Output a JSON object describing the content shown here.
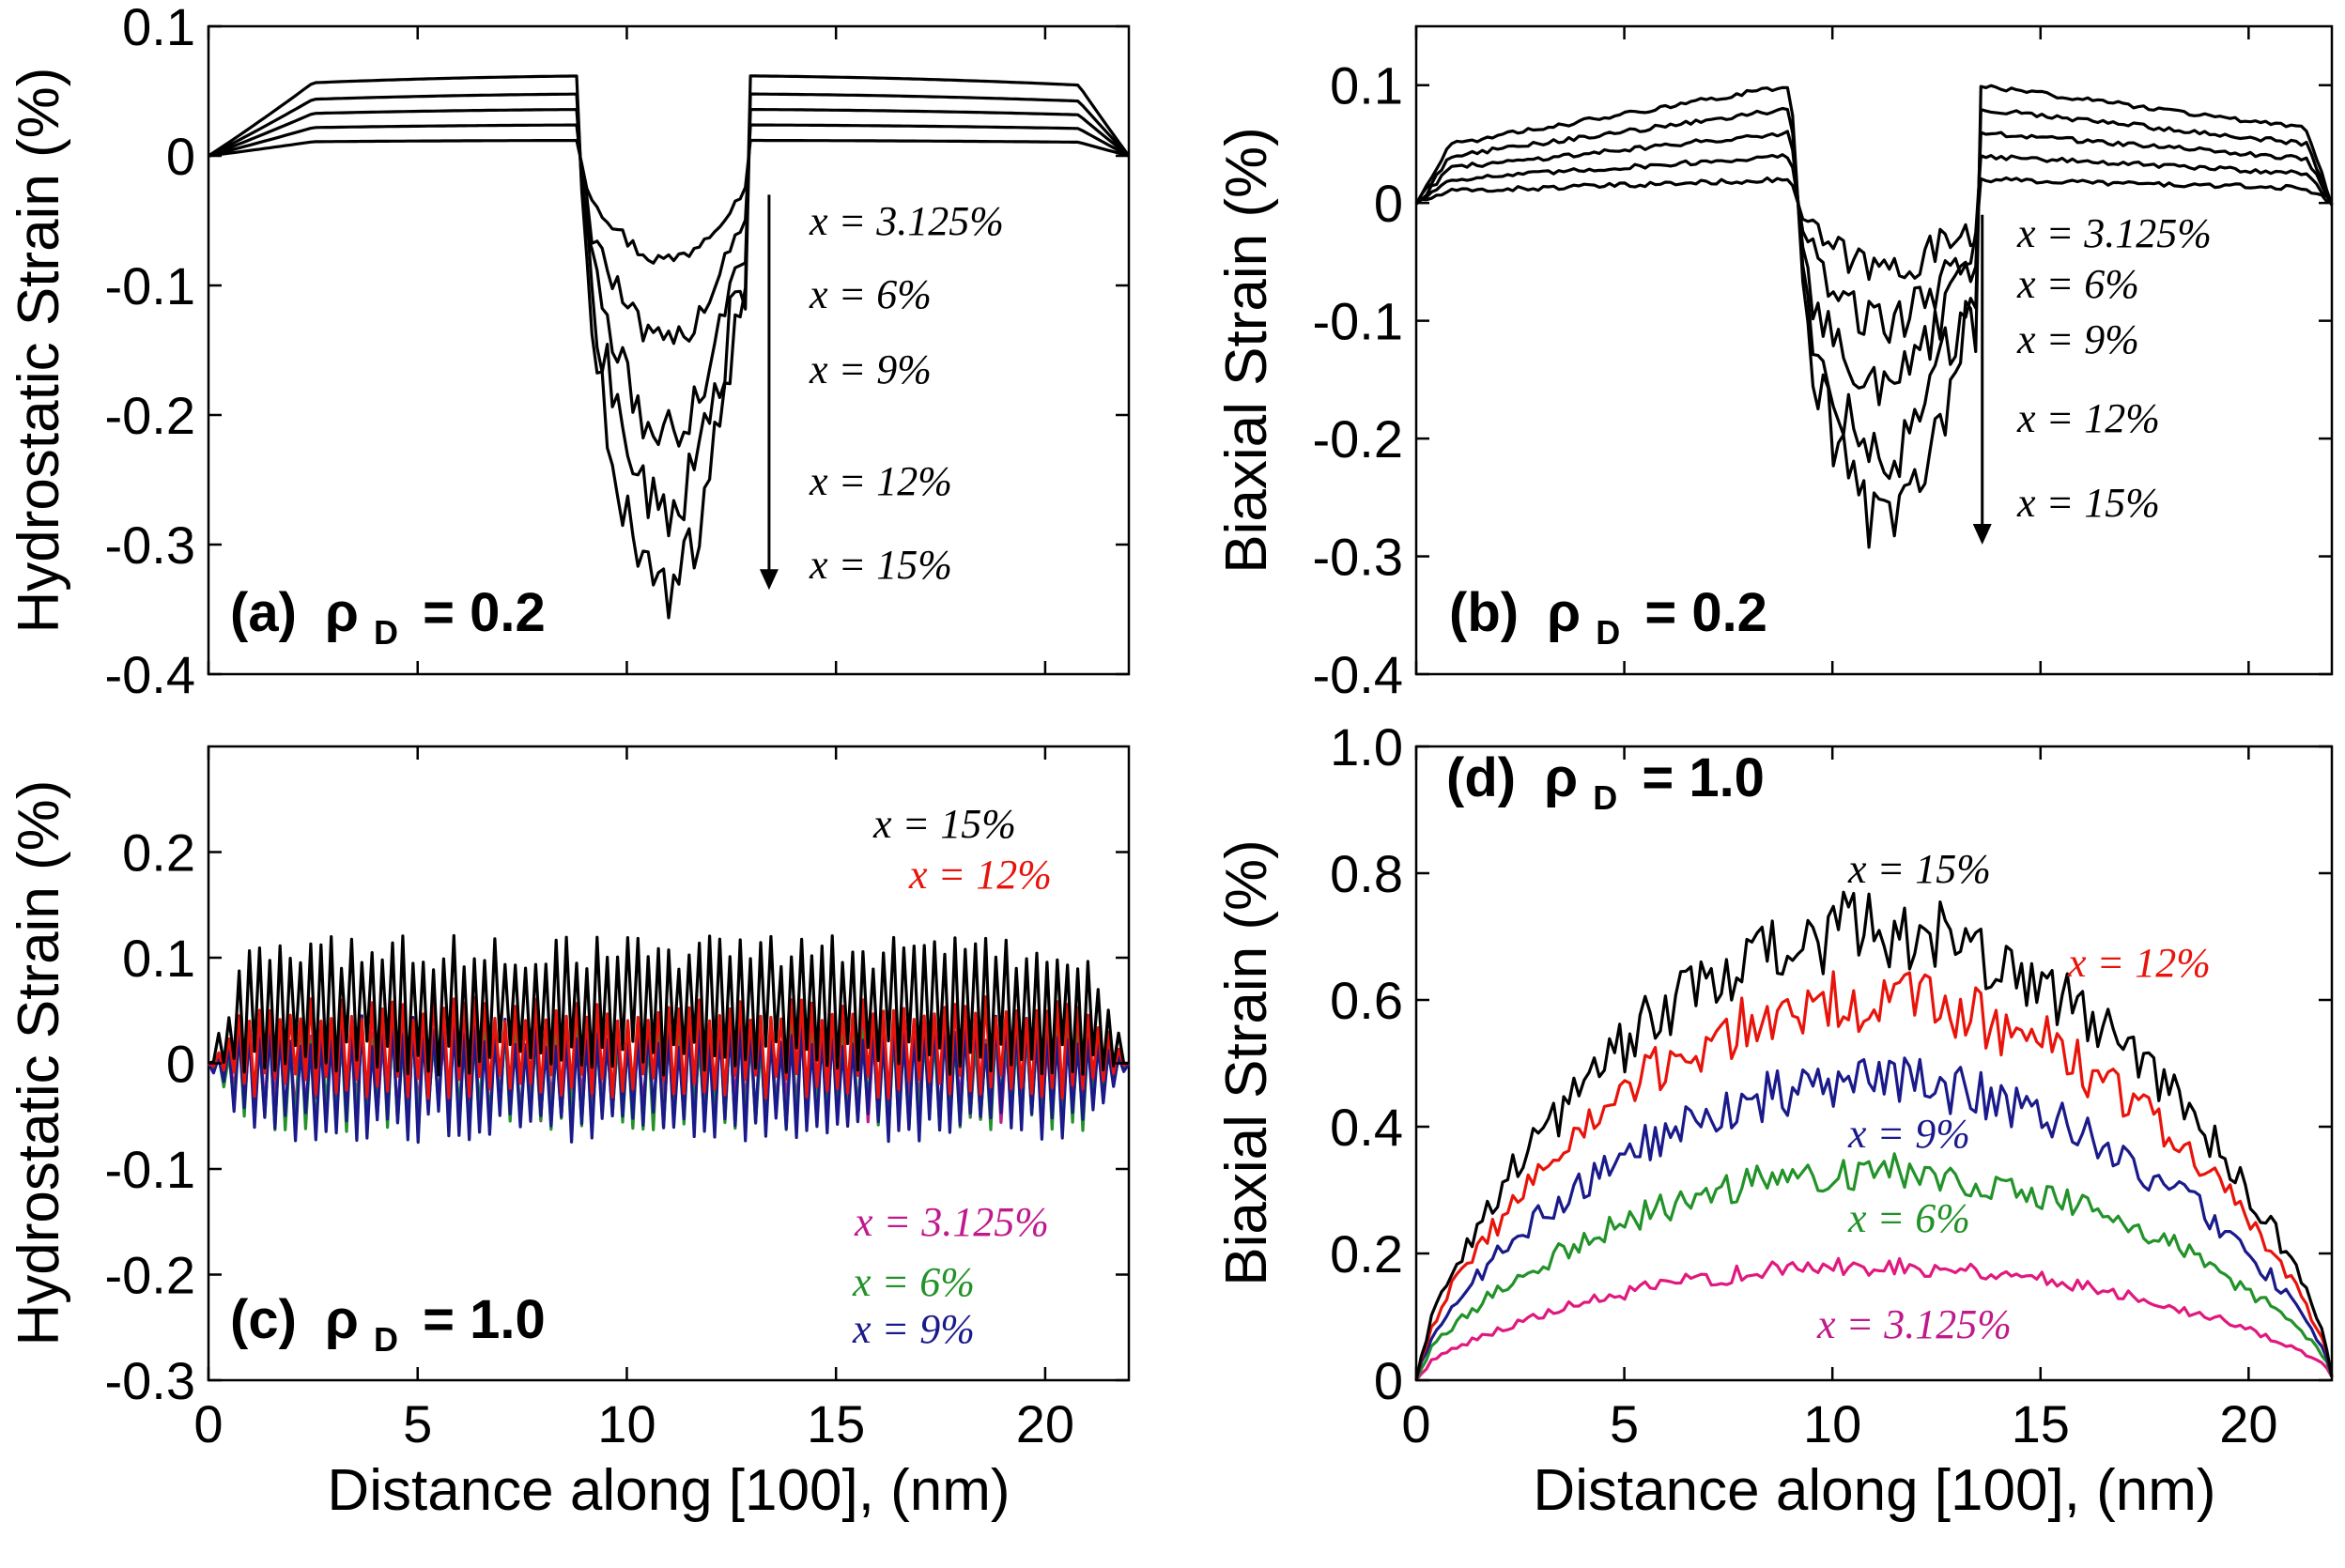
{
  "chart_data": [
    {
      "id": "a",
      "type": "line",
      "panel_label": "(a)",
      "panel_symbol": "ρ",
      "panel_subscript": "D",
      "panel_value": "= 0.2",
      "xlabel": "",
      "ylabel": "Hydrostatic Strain (%)",
      "xlim": [
        0,
        22
      ],
      "ylim": [
        -0.4,
        0.1
      ],
      "xticks": [
        0,
        5,
        10,
        15,
        20
      ],
      "xticklabels": [
        "",
        "",
        "",
        "",
        ""
      ],
      "yticks": [
        0.1,
        0,
        -0.1,
        -0.2,
        -0.3,
        -0.4
      ],
      "yticklabels": [
        "0.1",
        "0",
        "-0.1",
        "-0.2",
        "-0.3",
        "-0.4"
      ],
      "series": [
        {
          "name": "x = 3.125%",
          "color": "#000000",
          "plateau": 0.012,
          "depth": -0.08
        },
        {
          "name": "x = 6%",
          "color": "#000000",
          "plateau": 0.024,
          "depth": -0.145
        },
        {
          "name": "x = 9%",
          "color": "#000000",
          "plateau": 0.036,
          "depth": -0.215
        },
        {
          "name": "x = 12%",
          "color": "#000000",
          "plateau": 0.048,
          "depth": -0.275
        },
        {
          "name": "x = 15%",
          "color": "#000000",
          "plateau": 0.062,
          "depth": -0.34
        }
      ],
      "annotations": [
        "x = 3.125%",
        "x = 6%",
        "x = 9%",
        "x = 12%",
        "x = 15%"
      ],
      "arrow": {
        "x": 13.4,
        "y_from": -0.03,
        "y_to": -0.335
      }
    },
    {
      "id": "b",
      "type": "line",
      "panel_label": "(b)",
      "panel_symbol": "ρ",
      "panel_subscript": "D",
      "panel_value": "= 0.2",
      "xlabel": "",
      "ylabel": "Biaxial Strain (%)",
      "xlim": [
        0,
        22
      ],
      "ylim": [
        -0.4,
        0.15
      ],
      "xticks": [
        0,
        5,
        10,
        15,
        20
      ],
      "xticklabels": [
        "",
        "",
        "",
        "",
        ""
      ],
      "yticks": [
        0.1,
        0,
        -0.1,
        -0.2,
        -0.3,
        -0.4
      ],
      "yticklabels": [
        "0.1",
        "0",
        "-0.1",
        "-0.2",
        "-0.3",
        "-0.4"
      ],
      "series": [
        {
          "name": "x = 3.125%",
          "color": "#000000",
          "peak": 0.02,
          "depth": -0.055
        },
        {
          "name": "x = 6%",
          "color": "#000000",
          "peak": 0.04,
          "depth": -0.1
        },
        {
          "name": "x = 9%",
          "color": "#000000",
          "peak": 0.06,
          "depth": -0.155
        },
        {
          "name": "x = 12%",
          "color": "#000000",
          "peak": 0.08,
          "depth": -0.215
        },
        {
          "name": "x = 15%",
          "color": "#000000",
          "peak": 0.1,
          "depth": -0.27
        }
      ],
      "annotations": [
        "x = 3.125%",
        "x = 6%",
        "x = 9%",
        "x = 12%",
        "x = 15%"
      ],
      "arrow": {
        "x": 13.6,
        "y_from": -0.01,
        "y_to": -0.29
      }
    },
    {
      "id": "c",
      "type": "line",
      "panel_label": "(c)",
      "panel_symbol": "ρ",
      "panel_subscript": "D",
      "panel_value": "= 1.0",
      "xlabel": "Distance along [100], (nm)",
      "ylabel": "Hydrostatic Strain (%)",
      "xlim": [
        0,
        22
      ],
      "ylim": [
        -0.3,
        0.3
      ],
      "xticks": [
        0,
        5,
        10,
        15,
        20
      ],
      "xticklabels": [
        "0",
        "5",
        "10",
        "15",
        "20"
      ],
      "yticks": [
        0.2,
        0.1,
        0,
        -0.1,
        -0.2,
        -0.3
      ],
      "yticklabels": [
        "0.2",
        "0.1",
        "0",
        "-0.1",
        "-0.2",
        "-0.3"
      ],
      "series": [
        {
          "name": "x = 3.125%",
          "color": "#c0198c",
          "center": -0.008,
          "amp": 0.04
        },
        {
          "name": "x = 6%",
          "color": "#229229",
          "center": -0.012,
          "amp": 0.045
        },
        {
          "name": "x = 9%",
          "color": "#1a1a8a",
          "center": -0.015,
          "amp": 0.05
        },
        {
          "name": "x = 12%",
          "color": "#e8140c",
          "center": 0.015,
          "amp": 0.04
        },
        {
          "name": "x = 15%",
          "color": "#000000",
          "center": 0.055,
          "amp": 0.055
        }
      ],
      "annotations": [
        "x = 15%",
        "x = 12%",
        "x = 3.125%",
        "x = 6%",
        "x = 9%"
      ]
    },
    {
      "id": "d",
      "type": "line",
      "panel_label": "(d)",
      "panel_symbol": "ρ",
      "panel_subscript": "D",
      "panel_value": "= 1.0",
      "xlabel": "Distance along [100], (nm)",
      "ylabel": "Biaxial Strain (%)",
      "xlim": [
        0,
        22
      ],
      "ylim": [
        0,
        1.0
      ],
      "xticks": [
        0,
        5,
        10,
        15,
        20
      ],
      "xticklabels": [
        "0",
        "5",
        "10",
        "15",
        "20"
      ],
      "yticks": [
        1.0,
        0.8,
        0.6,
        0.4,
        0.2,
        0
      ],
      "yticklabels": [
        "1.0",
        "0.8",
        "0.6",
        "0.4",
        "0.2",
        "0"
      ],
      "series": [
        {
          "name": "x = 3.125%",
          "color": "#e0197f",
          "peak": 0.17
        },
        {
          "name": "x = 6%",
          "color": "#229229",
          "peak": 0.32
        },
        {
          "name": "x = 9%",
          "color": "#1a1a8a",
          "peak": 0.46
        },
        {
          "name": "x = 12%",
          "color": "#e8140c",
          "peak": 0.59
        },
        {
          "name": "x = 15%",
          "color": "#000000",
          "peak": 0.7
        }
      ],
      "annotations": [
        "x = 15%",
        "x = 12%",
        "x = 9%",
        "x = 6%",
        "x = 3.125%"
      ]
    }
  ]
}
